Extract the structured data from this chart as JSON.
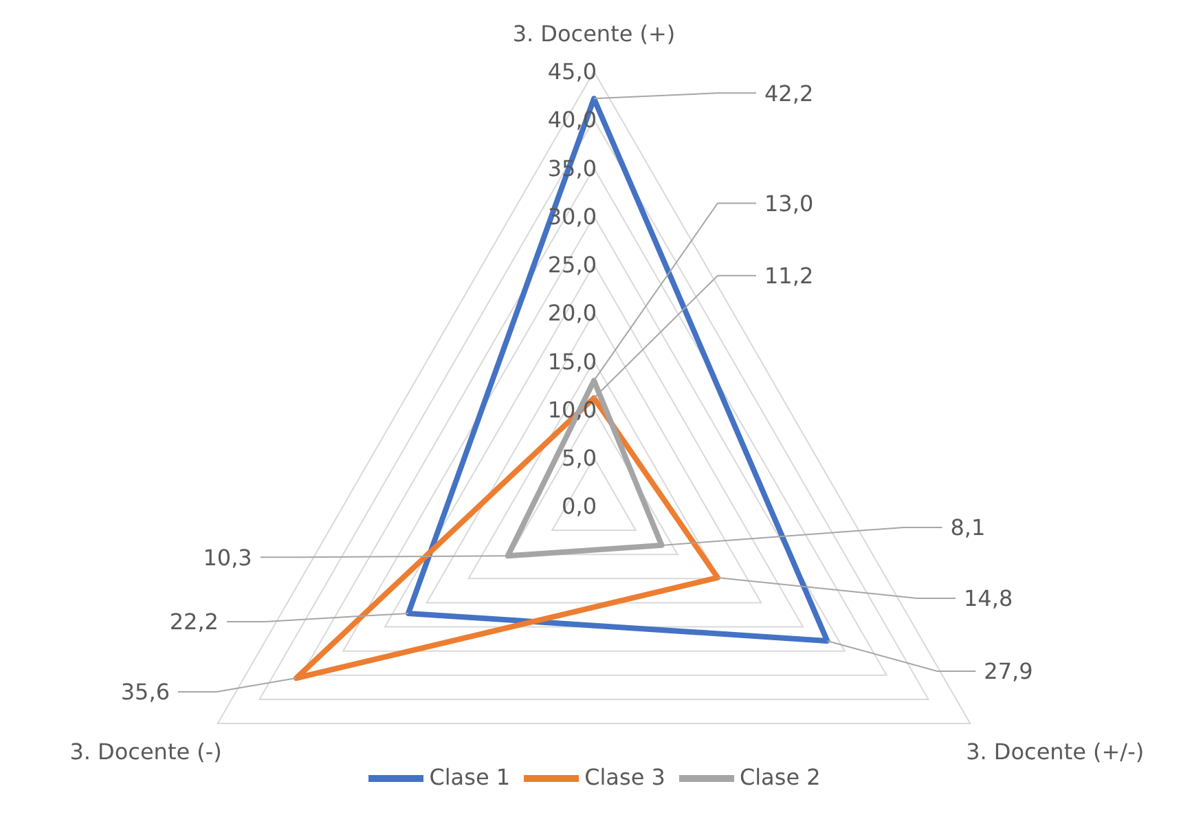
{
  "chart_data": {
    "type": "radar",
    "categories": [
      "3. Docente (+)",
      "3. Docente (+/-)",
      "3. Docente (-)"
    ],
    "series": [
      {
        "name": "Clase 1",
        "color": "#4472c4",
        "values": [
          42.2,
          27.9,
          22.2
        ],
        "value_labels": [
          "42,2",
          "27,9",
          "22,2"
        ]
      },
      {
        "name": "Clase 3",
        "color": "#ed7d31",
        "values": [
          11.2,
          14.8,
          35.6
        ],
        "value_labels": [
          "11,2",
          "14,8",
          "35,6"
        ]
      },
      {
        "name": "Clase 2",
        "color": "#a5a5a5",
        "values": [
          13.0,
          8.1,
          10.3
        ],
        "value_labels": [
          "13,0",
          "8,1",
          "10,3"
        ]
      }
    ],
    "ylim": [
      0,
      45
    ],
    "yticks": [
      {
        "value": 0,
        "label": "0,0"
      },
      {
        "value": 5,
        "label": "5,0"
      },
      {
        "value": 10,
        "label": "10,0"
      },
      {
        "value": 15,
        "label": "15,0"
      },
      {
        "value": 20,
        "label": "20,0"
      },
      {
        "value": 25,
        "label": "25,0"
      },
      {
        "value": 30,
        "label": "30,0"
      },
      {
        "value": 35,
        "label": "35,0"
      },
      {
        "value": 40,
        "label": "40,0"
      },
      {
        "value": 45,
        "label": "45,0"
      }
    ],
    "grid": true,
    "legend": "bottom"
  }
}
